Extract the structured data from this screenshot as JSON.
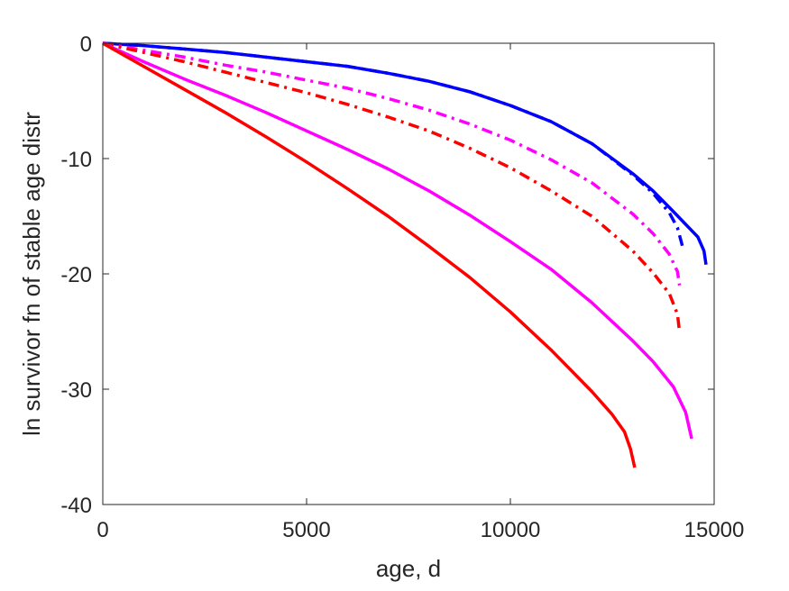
{
  "chart_data": {
    "type": "line",
    "title": "",
    "xlabel": "age, d",
    "ylabel": "ln survivor fn of stable age distr",
    "xlim": [
      0,
      15000
    ],
    "ylim": [
      -40,
      0
    ],
    "xticks": [
      0,
      5000,
      10000,
      15000
    ],
    "xtick_labels": [
      "0",
      "5000",
      "10000",
      "15000"
    ],
    "yticks": [
      -40,
      -30,
      -20,
      -10,
      0
    ],
    "ytick_labels": [
      "-40",
      "-30",
      "-20",
      "-10",
      "0"
    ],
    "grid": false,
    "legend": "none",
    "series": [
      {
        "color": "#0000ff",
        "style": "solid",
        "x": [
          0,
          1000,
          2000,
          3000,
          4000,
          5000,
          6000,
          7000,
          8000,
          9000,
          10000,
          11000,
          12000,
          13000,
          13500,
          14000,
          14300,
          14600,
          14750,
          14800
        ],
        "y": [
          0,
          -0.2,
          -0.5,
          -0.8,
          -1.2,
          -1.6,
          -2.0,
          -2.6,
          -3.3,
          -4.2,
          -5.4,
          -6.8,
          -8.7,
          -11.3,
          -12.8,
          -14.6,
          -15.7,
          -16.8,
          -18.0,
          -19.2
        ]
      },
      {
        "color": "#0000ff",
        "style": "dashdot",
        "x": [
          0,
          1000,
          2000,
          3000,
          4000,
          5000,
          6000,
          7000,
          8000,
          9000,
          10000,
          11000,
          12000,
          13000,
          13500,
          13900,
          14100,
          14200,
          14250
        ],
        "y": [
          0,
          -0.2,
          -0.5,
          -0.8,
          -1.2,
          -1.6,
          -2.0,
          -2.6,
          -3.3,
          -4.2,
          -5.4,
          -6.8,
          -8.7,
          -11.4,
          -13.0,
          -14.7,
          -16.0,
          -17.3,
          -18.0
        ]
      },
      {
        "color": "#ff00ff",
        "style": "dashdot",
        "x": [
          0,
          1000,
          2000,
          3000,
          4000,
          5000,
          6000,
          7000,
          8000,
          9000,
          10000,
          11000,
          12000,
          13000,
          13500,
          13900,
          14100,
          14150
        ],
        "y": [
          0,
          -0.6,
          -1.2,
          -1.9,
          -2.5,
          -3.2,
          -3.9,
          -4.8,
          -5.8,
          -7.0,
          -8.4,
          -10.1,
          -12.1,
          -14.8,
          -16.5,
          -18.3,
          -19.8,
          -21.0
        ]
      },
      {
        "color": "#ff0000",
        "style": "dashdot",
        "x": [
          0,
          1000,
          2000,
          3000,
          4000,
          5000,
          6000,
          7000,
          8000,
          9000,
          10000,
          11000,
          12000,
          13000,
          13500,
          13900,
          14100,
          14150
        ],
        "y": [
          0,
          -0.8,
          -1.6,
          -2.5,
          -3.4,
          -4.3,
          -5.3,
          -6.4,
          -7.6,
          -9.1,
          -10.8,
          -12.8,
          -15.0,
          -18.0,
          -19.9,
          -21.7,
          -23.5,
          -25.0
        ]
      },
      {
        "color": "#ff00ff",
        "style": "solid",
        "x": [
          0,
          1000,
          2000,
          3000,
          4000,
          5000,
          6000,
          7000,
          8000,
          9000,
          10000,
          11000,
          12000,
          13000,
          13500,
          14000,
          14300,
          14450
        ],
        "y": [
          0,
          -1.6,
          -3.1,
          -4.5,
          -6.0,
          -7.6,
          -9.2,
          -10.9,
          -12.8,
          -14.9,
          -17.2,
          -19.6,
          -22.5,
          -25.8,
          -27.6,
          -29.8,
          -32.0,
          -34.3
        ]
      },
      {
        "color": "#ff0000",
        "style": "solid",
        "x": [
          0,
          1000,
          2000,
          3000,
          4000,
          5000,
          6000,
          7000,
          8000,
          9000,
          10000,
          11000,
          12000,
          12500,
          12800,
          12950,
          13050
        ],
        "y": [
          0,
          -2.0,
          -4.0,
          -6.0,
          -8.1,
          -10.3,
          -12.6,
          -15.0,
          -17.6,
          -20.3,
          -23.3,
          -26.6,
          -30.2,
          -32.2,
          -33.7,
          -35.2,
          -36.8
        ]
      }
    ]
  }
}
